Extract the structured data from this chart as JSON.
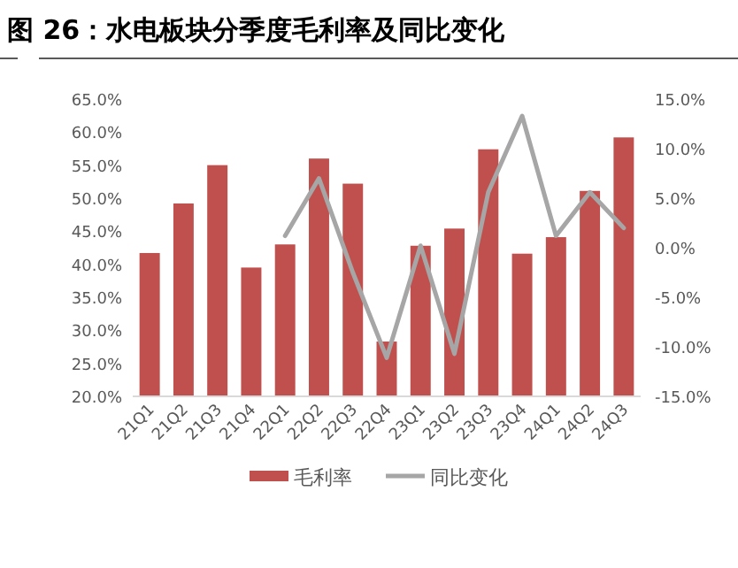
{
  "chart_data": {
    "type": "bar",
    "title": "图 26：水电板块分季度毛利率及同比变化",
    "categories": [
      "21Q1",
      "21Q2",
      "21Q3",
      "21Q4",
      "22Q1",
      "22Q2",
      "22Q3",
      "22Q4",
      "23Q1",
      "23Q2",
      "23Q3",
      "23Q4",
      "24Q1",
      "24Q2",
      "24Q3"
    ],
    "series": [
      {
        "name": "毛利率",
        "color": "#c0504d",
        "values": [
          41.7,
          49.2,
          55.0,
          39.5,
          43.0,
          56.0,
          52.2,
          28.3,
          42.8,
          45.4,
          57.4,
          41.6,
          44.1,
          51.1,
          59.2
        ]
      },
      {
        "name": "同比变化",
        "type": "line",
        "axis": "y2",
        "color": "#a6a6a6",
        "values": [
          null,
          null,
          null,
          null,
          1.2,
          7.0,
          -2.5,
          -11.1,
          0.2,
          -10.7,
          5.6,
          13.3,
          1.2,
          5.6,
          2.0
        ]
      }
    ],
    "ylim": [
      20,
      65
    ],
    "yticks": [
      {
        "value": 20,
        "label": "20.0%"
      },
      {
        "value": 25,
        "label": "25.0%"
      },
      {
        "value": 30,
        "label": "30.0%"
      },
      {
        "value": 35,
        "label": "35.0%"
      },
      {
        "value": 40,
        "label": "40.0%"
      },
      {
        "value": 45,
        "label": "45.0%"
      },
      {
        "value": 50,
        "label": "50.0%"
      },
      {
        "value": 55,
        "label": "55.0%"
      },
      {
        "value": 60,
        "label": "60.0%"
      },
      {
        "value": 65,
        "label": "65.0%"
      }
    ],
    "y2lim": [
      -15,
      15
    ],
    "y2ticks": [
      {
        "value": -15,
        "label": "-15.0%"
      },
      {
        "value": -10,
        "label": "-10.0%"
      },
      {
        "value": -5,
        "label": "-5.0%"
      },
      {
        "value": 0,
        "label": "0.0%"
      },
      {
        "value": 5,
        "label": "5.0%"
      },
      {
        "value": 10,
        "label": "10.0%"
      },
      {
        "value": 15,
        "label": "15.0%"
      }
    ],
    "legend": "bottom",
    "grid": false
  }
}
